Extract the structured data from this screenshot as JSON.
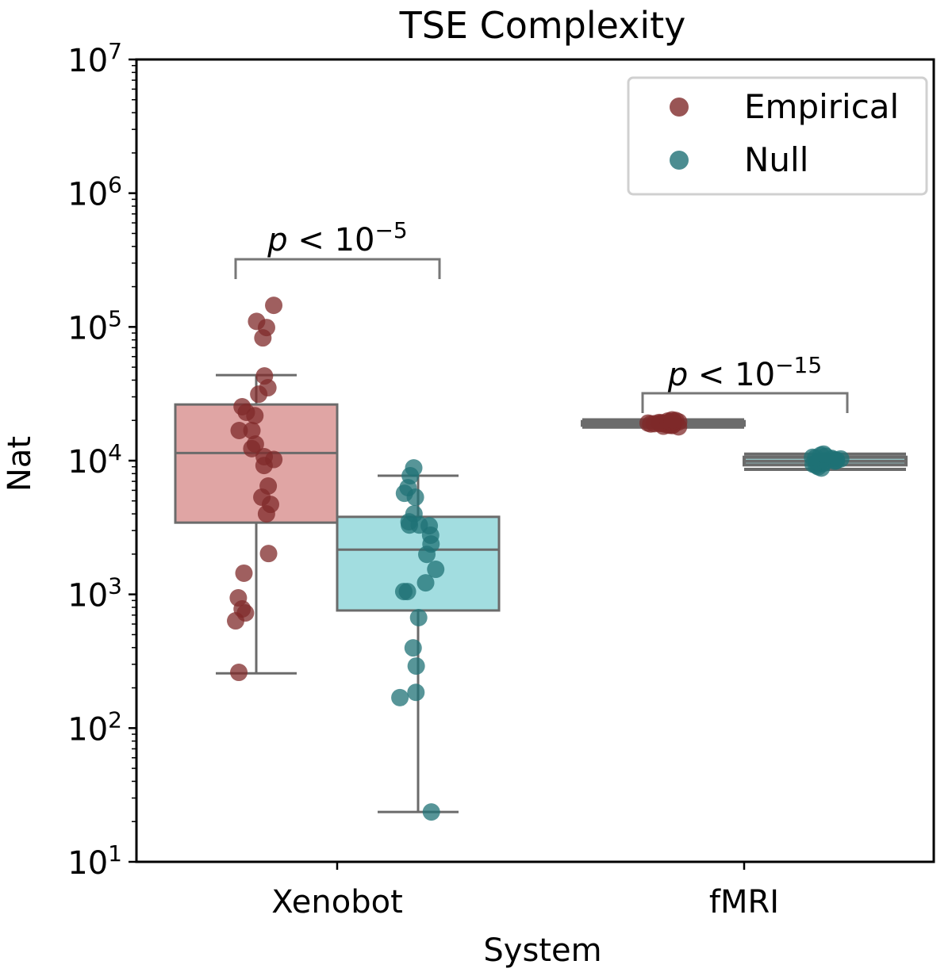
{
  "chart_data": {
    "type": "box",
    "title": "TSE Complexity",
    "xlabel": "System",
    "ylabel": "Nat",
    "yscale": "log",
    "ylim": [
      10,
      10000000
    ],
    "yticks": [
      {
        "value": 10,
        "base": "10",
        "exp": "1"
      },
      {
        "value": 100,
        "base": "10",
        "exp": "2"
      },
      {
        "value": 1000,
        "base": "10",
        "exp": "3"
      },
      {
        "value": 10000,
        "base": "10",
        "exp": "4"
      },
      {
        "value": 100000,
        "base": "10",
        "exp": "5"
      },
      {
        "value": 1000000,
        "base": "10",
        "exp": "6"
      },
      {
        "value": 10000000,
        "base": "10",
        "exp": "7"
      }
    ],
    "categories": [
      "Xenobot",
      "fMRI"
    ],
    "legend": {
      "position": "top-right",
      "entries": [
        "Empirical",
        "Null"
      ]
    },
    "colors": {
      "empirical_point": "#7f2a2a",
      "null_point": "#1f7175",
      "empirical_box": "#e0a5a4",
      "null_box": "#a2dde0",
      "box_edge": "#6b6b6b"
    },
    "series": [
      {
        "name": "Empirical",
        "boxes": [
          {
            "category": "Xenobot",
            "whisker_low": 257,
            "q1": 3440,
            "median": 11400,
            "q3": 26300,
            "whisker_high": 43600
          },
          {
            "category": "fMRI",
            "whisker_low": 17800,
            "q1": 18400,
            "median": 19000,
            "q3": 19600,
            "whisker_high": 20200
          }
        ],
        "points": {
          "Xenobot": [
            145000,
            110000,
            99000,
            82800,
            43000,
            35100,
            31400,
            25300,
            23000,
            21700,
            16800,
            16800,
            13300,
            12300,
            10700,
            10200,
            9200,
            6460,
            5330,
            4710,
            4000,
            2020,
            1440,
            942,
            778,
            726,
            634,
            261
          ],
          "fMRI": [
            17900,
            18100,
            18300,
            18400,
            18500,
            18600,
            18700,
            18800,
            18900,
            19000,
            19000,
            19100,
            19200,
            19300,
            19400,
            19500,
            19600,
            19700,
            19800,
            20000,
            20200
          ]
        }
      },
      {
        "name": "Null",
        "boxes": [
          {
            "category": "Xenobot",
            "whisker_low": 23.6,
            "q1": 758,
            "median": 2160,
            "q3": 3800,
            "whisker_high": 7710
          },
          {
            "category": "fMRI",
            "whisker_low": 8600,
            "q1": 9300,
            "median": 9900,
            "q3": 10600,
            "whisker_high": 11200
          }
        ],
        "points": {
          "Xenobot": [
            8830,
            7710,
            6280,
            5700,
            5330,
            4000,
            3490,
            3300,
            3260,
            3300,
            2770,
            2380,
            1990,
            1540,
            1220,
            1050,
            1050,
            670,
            398,
            291,
            185,
            169,
            23.6
          ],
          "fMRI": [
            8800,
            9000,
            9200,
            9400,
            9500,
            9600,
            9700,
            9800,
            9900,
            9950,
            10000,
            10100,
            10200,
            10300,
            10400,
            10500,
            10600,
            10800,
            11000,
            11200
          ]
        }
      }
    ],
    "annotations": [
      {
        "category": "Xenobot",
        "italic": "p",
        "text": " < 10",
        "exp": "−5"
      },
      {
        "category": "fMRI",
        "italic": "p",
        "text": " < 10",
        "exp": "−15"
      }
    ]
  }
}
